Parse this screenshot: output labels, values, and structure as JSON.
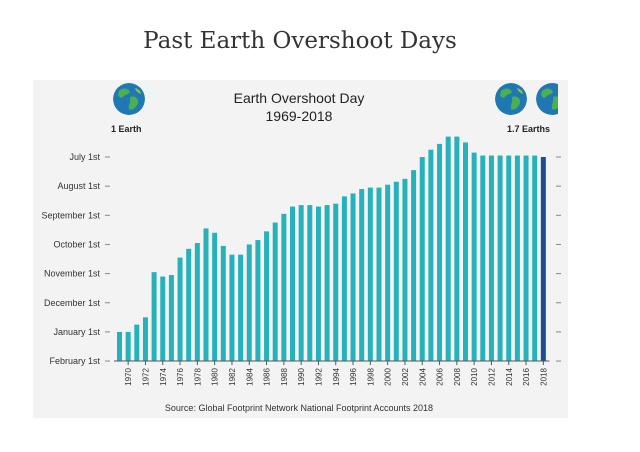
{
  "page": {
    "heading": "Past Earth Overshoot Days"
  },
  "globes": {
    "left_label": "1 Earth",
    "right_label": "1.7 Earths",
    "icon": "earth-globe-icon",
    "ocean_color": "#1f78b4",
    "land_color": "#4caf50"
  },
  "chart_data": {
    "type": "bar",
    "title": "Earth Overshoot Day",
    "subtitle": "1969-2018",
    "source": "Source: Global Footprint Network National Footprint Accounts 2018",
    "y_tick_labels": [
      "July 1st",
      "August 1st",
      "September 1st",
      "October 1st",
      "November 1st",
      "December 1st",
      "January 1st",
      "February 1st"
    ],
    "x_tick_labels": [
      "1970",
      "1972",
      "1974",
      "1976",
      "1978",
      "1980",
      "1982",
      "1984",
      "1986",
      "1988",
      "1990",
      "1992",
      "1994",
      "1996",
      "1998",
      "2000",
      "2002",
      "2004",
      "2006",
      "2008",
      "2010",
      "2012",
      "2014",
      "2016",
      "2018"
    ],
    "years": [
      1969,
      1970,
      1971,
      1972,
      1973,
      1974,
      1975,
      1976,
      1977,
      1978,
      1979,
      1980,
      1981,
      1982,
      1983,
      1984,
      1985,
      1986,
      1987,
      1988,
      1989,
      1990,
      1991,
      1992,
      1993,
      1994,
      1995,
      1996,
      1997,
      1998,
      1999,
      2000,
      2001,
      2002,
      2003,
      2004,
      2005,
      2006,
      2007,
      2008,
      2009,
      2010,
      2011,
      2012,
      2013,
      2014,
      2015,
      2016,
      2017,
      2018
    ],
    "values_months_after_july_1": [
      6.0,
      6.0,
      5.75,
      5.5,
      3.95,
      4.1,
      4.05,
      3.45,
      3.15,
      2.95,
      2.45,
      2.6,
      3.05,
      3.35,
      3.35,
      3.0,
      2.85,
      2.55,
      2.25,
      1.95,
      1.7,
      1.65,
      1.65,
      1.7,
      1.65,
      1.6,
      1.35,
      1.25,
      1.1,
      1.05,
      1.05,
      0.95,
      0.85,
      0.75,
      0.45,
      0.0,
      -0.25,
      -0.45,
      -0.7,
      -0.7,
      -0.5,
      -0.15,
      -0.05,
      -0.05,
      -0.05,
      -0.05,
      -0.05,
      -0.05,
      -0.05,
      0.0
    ],
    "value_note": "",
    "ylim_months_after_july_1": [
      0,
      7
    ],
    "colors": {
      "bar": "#27b2bb",
      "bar_highlight": "#1a4f96",
      "grid": "#888888"
    },
    "highlight_last": true,
    "grid": false
  }
}
